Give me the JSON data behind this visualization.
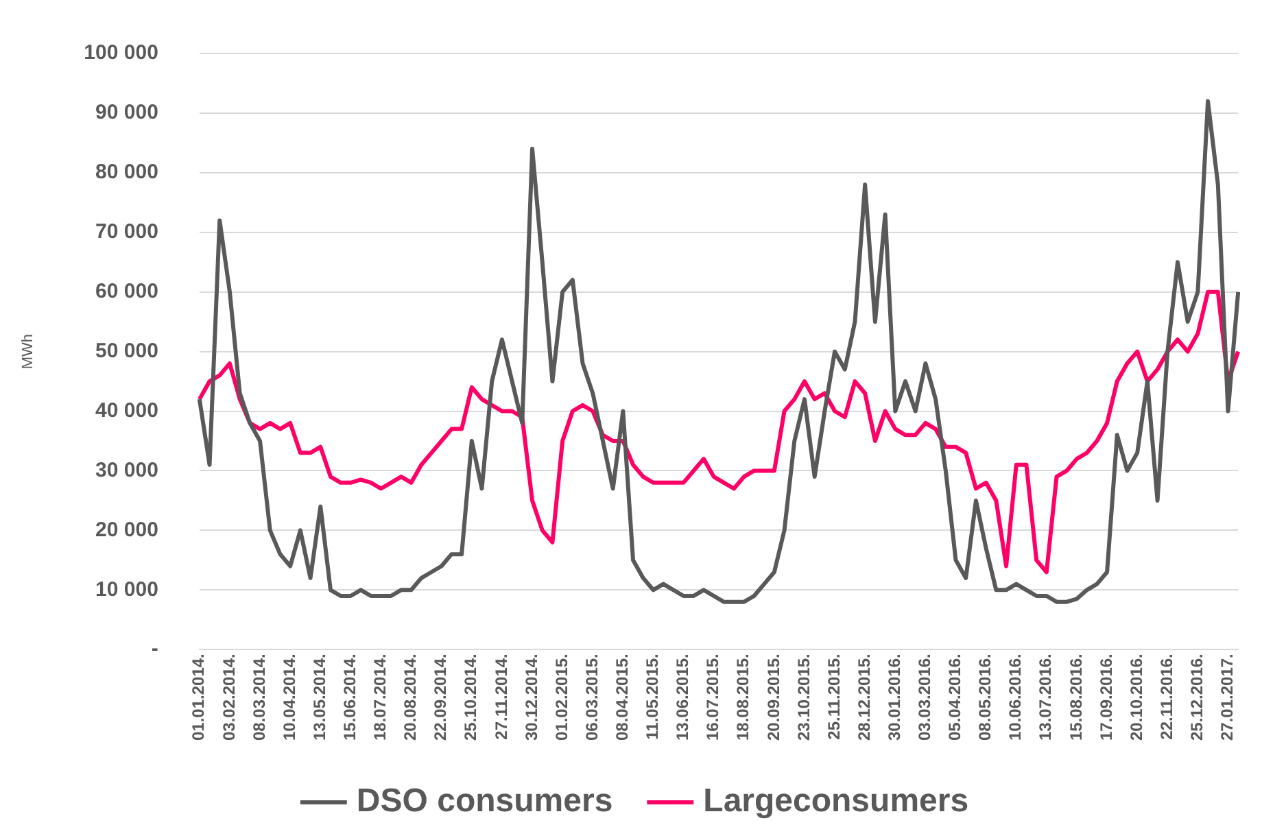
{
  "chart_data": {
    "type": "line",
    "ylabel": "MWh",
    "categories": [
      "01.01.2014.",
      null,
      null,
      "03.02.2014.",
      null,
      null,
      "08.03.2014.",
      null,
      null,
      "10.04.2014.",
      null,
      null,
      "13.05.2014.",
      null,
      null,
      "15.06.2014.",
      null,
      null,
      "18.07.2014.",
      null,
      null,
      "20.08.2014.",
      null,
      null,
      "22.09.2014.",
      null,
      null,
      "25.10.2014.",
      null,
      null,
      "27.11.2014.",
      null,
      null,
      "30.12.2014.",
      null,
      null,
      "01.02.2015.",
      null,
      null,
      "06.03.2015.",
      null,
      null,
      "08.04.2015.",
      null,
      null,
      "11.05.2015.",
      null,
      null,
      "13.06.2015.",
      null,
      null,
      "16.07.2015.",
      null,
      null,
      "18.08.2015.",
      null,
      null,
      "20.09.2015.",
      null,
      null,
      "23.10.2015.",
      null,
      null,
      "25.11.2015.",
      null,
      null,
      "28.12.2015.",
      null,
      null,
      "30.01.2016.",
      null,
      null,
      "03.03.2016.",
      null,
      null,
      "05.04.2016.",
      null,
      null,
      "08.05.2016.",
      null,
      null,
      "10.06.2016.",
      null,
      null,
      "13.07.2016.",
      null,
      null,
      "15.08.2016.",
      null,
      null,
      "17.09.2016.",
      null,
      null,
      "20.10.2016.",
      null,
      null,
      "22.11.2016.",
      null,
      null,
      "25.12.2016.",
      null,
      null,
      "27.01.2017.",
      null
    ],
    "series": [
      {
        "name": "DSO consumers",
        "color": "#595959",
        "values": [
          42000,
          31000,
          72000,
          60000,
          43000,
          38000,
          35000,
          20000,
          16000,
          14000,
          20000,
          12000,
          24000,
          10000,
          9000,
          9000,
          10000,
          9000,
          9000,
          9000,
          10000,
          10000,
          12000,
          13000,
          14000,
          16000,
          16000,
          35000,
          27000,
          45000,
          52000,
          45000,
          38000,
          84000,
          65000,
          45000,
          60000,
          62000,
          48000,
          43000,
          35000,
          27000,
          40000,
          15000,
          12000,
          10000,
          11000,
          10000,
          9000,
          9000,
          10000,
          9000,
          8000,
          8000,
          8000,
          9000,
          11000,
          13000,
          20000,
          35000,
          42000,
          29000,
          40000,
          50000,
          47000,
          55000,
          78000,
          55000,
          73000,
          40000,
          45000,
          40000,
          48000,
          42000,
          30000,
          15000,
          12000,
          25000,
          17000,
          10000,
          10000,
          11000,
          10000,
          9000,
          9000,
          8000,
          8000,
          8500,
          10000,
          11000,
          13000,
          36000,
          30000,
          33000,
          45000,
          25000,
          50000,
          65000,
          55000,
          60000,
          92000,
          78000,
          40000,
          60000
        ]
      },
      {
        "name": "Largeconsumers",
        "color": "#ff0066",
        "values": [
          42000,
          45000,
          46000,
          48000,
          42000,
          38000,
          37000,
          38000,
          37000,
          38000,
          33000,
          33000,
          34000,
          29000,
          28000,
          28000,
          28500,
          28000,
          27000,
          28000,
          29000,
          28000,
          31000,
          33000,
          35000,
          37000,
          37000,
          44000,
          42000,
          41000,
          40000,
          40000,
          39000,
          25000,
          20000,
          18000,
          35000,
          40000,
          41000,
          40000,
          36000,
          35000,
          35000,
          31000,
          29000,
          28000,
          28000,
          28000,
          28000,
          30000,
          32000,
          29000,
          28000,
          27000,
          29000,
          30000,
          30000,
          30000,
          40000,
          42000,
          45000,
          42000,
          43000,
          40000,
          39000,
          45000,
          43000,
          35000,
          40000,
          37000,
          36000,
          36000,
          38000,
          37000,
          34000,
          34000,
          33000,
          27000,
          28000,
          25000,
          14000,
          31000,
          31000,
          15000,
          13000,
          29000,
          30000,
          32000,
          33000,
          35000,
          38000,
          45000,
          48000,
          50000,
          45000,
          47000,
          50000,
          52000,
          50000,
          53000,
          60000,
          60000,
          45000,
          50000
        ]
      }
    ],
    "ylim": [
      0,
      100000
    ],
    "yticks": [
      {
        "value": 0,
        "label": "-"
      },
      {
        "value": 10000,
        "label": "10 000"
      },
      {
        "value": 20000,
        "label": "20 000"
      },
      {
        "value": 30000,
        "label": "30 000"
      },
      {
        "value": 40000,
        "label": "40 000"
      },
      {
        "value": 50000,
        "label": "50 000"
      },
      {
        "value": 60000,
        "label": "60 000"
      },
      {
        "value": 70000,
        "label": "70 000"
      },
      {
        "value": 80000,
        "label": "80 000"
      },
      {
        "value": 90000,
        "label": "90 000"
      },
      {
        "value": 100000,
        "label": "100 000"
      }
    ],
    "grid": "y",
    "legend": "bottom",
    "marker": "none",
    "line_style": "solid"
  }
}
